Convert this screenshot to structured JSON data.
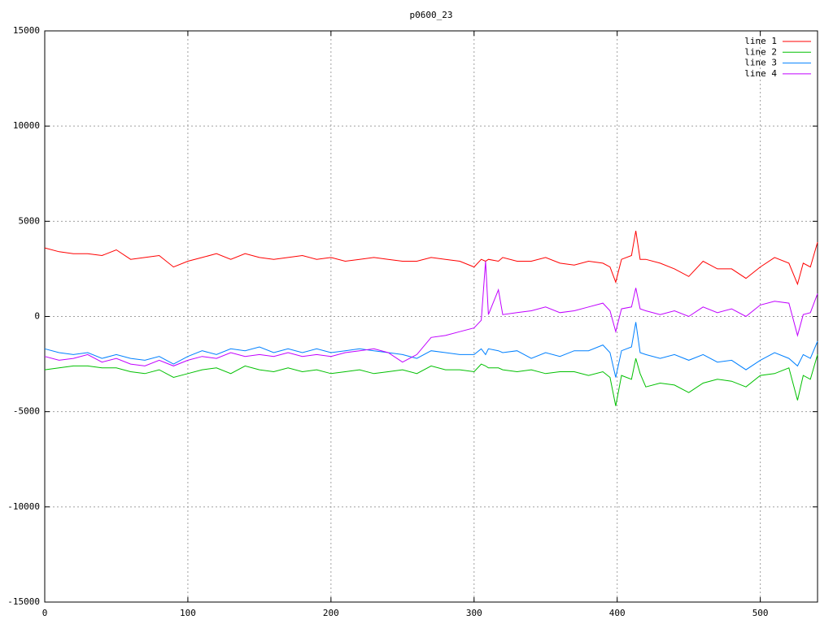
{
  "chart_data": {
    "type": "line",
    "title": "p0600_23",
    "x": [
      0,
      10,
      20,
      30,
      40,
      50,
      60,
      70,
      80,
      90,
      100,
      110,
      120,
      130,
      140,
      150,
      160,
      170,
      180,
      190,
      200,
      210,
      220,
      230,
      240,
      250,
      260,
      270,
      280,
      290,
      300,
      305,
      308,
      310,
      317,
      320,
      330,
      340,
      350,
      360,
      370,
      380,
      390,
      395,
      399,
      403,
      410,
      413,
      416,
      420,
      430,
      440,
      450,
      460,
      470,
      480,
      490,
      500,
      510,
      520,
      526,
      530,
      535,
      540
    ],
    "series": [
      {
        "name": "line 1",
        "color": "#ff0000",
        "values": [
          3600,
          3400,
          3300,
          3300,
          3200,
          3500,
          3000,
          3100,
          3200,
          2600,
          2900,
          3100,
          3300,
          3000,
          3300,
          3100,
          3000,
          3100,
          3200,
          3000,
          3100,
          2900,
          3000,
          3100,
          3000,
          2900,
          2900,
          3100,
          3000,
          2900,
          2600,
          3000,
          2900,
          3000,
          2900,
          3100,
          2900,
          2900,
          3100,
          2800,
          2700,
          2900,
          2800,
          2600,
          1800,
          3000,
          3200,
          4500,
          3000,
          3000,
          2800,
          2500,
          2100,
          2900,
          2500,
          2500,
          2000,
          2600,
          3100,
          2800,
          1700,
          2800,
          2600,
          3900
        ]
      },
      {
        "name": "line 2",
        "color": "#00c000",
        "values": [
          -2800,
          -2700,
          -2600,
          -2600,
          -2700,
          -2700,
          -2900,
          -3000,
          -2800,
          -3200,
          -3000,
          -2800,
          -2700,
          -3000,
          -2600,
          -2800,
          -2900,
          -2700,
          -2900,
          -2800,
          -3000,
          -2900,
          -2800,
          -3000,
          -2900,
          -2800,
          -3000,
          -2600,
          -2800,
          -2800,
          -2900,
          -2500,
          -2600,
          -2700,
          -2700,
          -2800,
          -2900,
          -2800,
          -3000,
          -2900,
          -2900,
          -3100,
          -2900,
          -3200,
          -4700,
          -3100,
          -3300,
          -2200,
          -3000,
          -3700,
          -3500,
          -3600,
          -4000,
          -3500,
          -3300,
          -3400,
          -3700,
          -3100,
          -3000,
          -2700,
          -4400,
          -3100,
          -3300,
          -2000
        ]
      },
      {
        "name": "line 3",
        "color": "#0080ff",
        "values": [
          -1700,
          -1900,
          -2000,
          -1900,
          -2200,
          -2000,
          -2200,
          -2300,
          -2100,
          -2500,
          -2100,
          -1800,
          -2000,
          -1700,
          -1800,
          -1600,
          -1900,
          -1700,
          -1900,
          -1700,
          -1900,
          -1800,
          -1700,
          -1800,
          -1900,
          -2000,
          -2200,
          -1800,
          -1900,
          -2000,
          -2000,
          -1700,
          -2000,
          -1700,
          -1800,
          -1900,
          -1800,
          -2200,
          -1900,
          -2100,
          -1800,
          -1800,
          -1500,
          -1900,
          -3200,
          -1800,
          -1600,
          -300,
          -1900,
          -2000,
          -2200,
          -2000,
          -2300,
          -2000,
          -2400,
          -2300,
          -2800,
          -2300,
          -1900,
          -2200,
          -2600,
          -2000,
          -2200,
          -1300
        ]
      },
      {
        "name": "line 4",
        "color": "#c000ff",
        "values": [
          -2100,
          -2300,
          -2200,
          -2000,
          -2400,
          -2200,
          -2500,
          -2600,
          -2300,
          -2600,
          -2300,
          -2100,
          -2200,
          -1900,
          -2100,
          -2000,
          -2100,
          -1900,
          -2100,
          -2000,
          -2100,
          -1900,
          -1800,
          -1700,
          -1900,
          -2400,
          -2000,
          -1100,
          -1000,
          -800,
          -600,
          -200,
          2900,
          100,
          1400,
          100,
          200,
          300,
          500,
          200,
          300,
          500,
          700,
          300,
          -800,
          400,
          500,
          1500,
          400,
          300,
          100,
          300,
          0,
          500,
          200,
          400,
          0,
          600,
          800,
          700,
          -1000,
          100,
          200,
          1200
        ]
      }
    ],
    "xlim": [
      0,
      540
    ],
    "xticks": [
      0,
      100,
      200,
      300,
      400,
      500
    ],
    "ylim": [
      -15000,
      15000
    ],
    "yticks": [
      -15000,
      -10000,
      -5000,
      0,
      5000,
      10000,
      15000
    ],
    "grid": true,
    "legend": "top-right"
  }
}
